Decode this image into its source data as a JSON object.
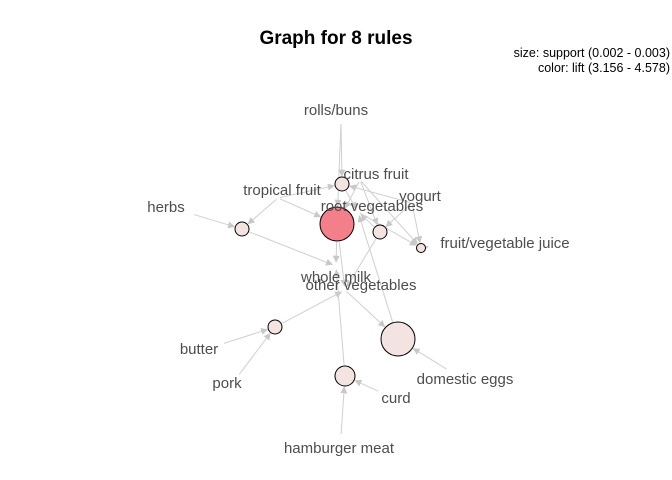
{
  "title": "Graph for 8 rules",
  "legend": {
    "size": "size: support (0.002 - 0.003)",
    "color": "color: lift (3.156 - 4.578)"
  },
  "colors": {
    "edge": "#cfcfcf",
    "high_lift": "#f27f8a",
    "low_lift": "#f3e4e2"
  },
  "items": [
    {
      "id": "rolls_buns",
      "label": "rolls/buns"
    },
    {
      "id": "citrus_fruit",
      "label": "citrus fruit"
    },
    {
      "id": "tropical_fruit",
      "label": "tropical fruit"
    },
    {
      "id": "yogurt",
      "label": "yogurt"
    },
    {
      "id": "herbs",
      "label": "herbs"
    },
    {
      "id": "root_vegetables",
      "label": "root vegetables"
    },
    {
      "id": "fruit_vegetable_juice",
      "label": "fruit/vegetable juice"
    },
    {
      "id": "whole_milk",
      "label": "whole milk"
    },
    {
      "id": "other_vegetables",
      "label": "other vegetables"
    },
    {
      "id": "butter",
      "label": "butter"
    },
    {
      "id": "pork",
      "label": "pork"
    },
    {
      "id": "domestic_eggs",
      "label": "domestic eggs"
    },
    {
      "id": "curd",
      "label": "curd"
    },
    {
      "id": "hamburger_meat",
      "label": "hamburger meat"
    }
  ],
  "rules": [
    {
      "id": "rule1",
      "size": "small",
      "lift": "low",
      "lhs": [
        "rolls_buns",
        "yogurt",
        "tropical_fruit"
      ],
      "rhs": [
        "root_vegetables"
      ]
    },
    {
      "id": "rule2",
      "size": "large",
      "lift": "high",
      "lhs": [
        "tropical_fruit",
        "citrus_fruit",
        "rolls_buns"
      ],
      "rhs": [
        "whole_milk",
        "other_vegetables"
      ]
    },
    {
      "id": "rule3",
      "size": "small",
      "lift": "low",
      "lhs": [
        "herbs",
        "tropical_fruit"
      ],
      "rhs": [
        "whole_milk"
      ]
    },
    {
      "id": "rule4",
      "size": "small",
      "lift": "low",
      "lhs": [
        "yogurt",
        "citrus_fruit"
      ],
      "rhs": [
        "root_vegetables",
        "other_vegetables"
      ]
    },
    {
      "id": "rule5",
      "size": "tiny",
      "lift": "low",
      "lhs": [
        "root_vegetables",
        "citrus_fruit",
        "yogurt"
      ],
      "rhs": [
        "fruit_vegetable_juice"
      ]
    },
    {
      "id": "rule6",
      "size": "small",
      "lift": "low",
      "lhs": [
        "butter",
        "pork"
      ],
      "rhs": [
        "other_vegetables"
      ]
    },
    {
      "id": "rule7",
      "size": "large",
      "lift": "low",
      "lhs": [
        "domestic_eggs",
        "other_vegetables"
      ],
      "rhs": [
        "root_vegetables"
      ]
    },
    {
      "id": "rule8",
      "size": "medium",
      "lift": "low",
      "lhs": [
        "hamburger_meat",
        "curd"
      ],
      "rhs": [
        "whole_milk"
      ]
    }
  ]
}
